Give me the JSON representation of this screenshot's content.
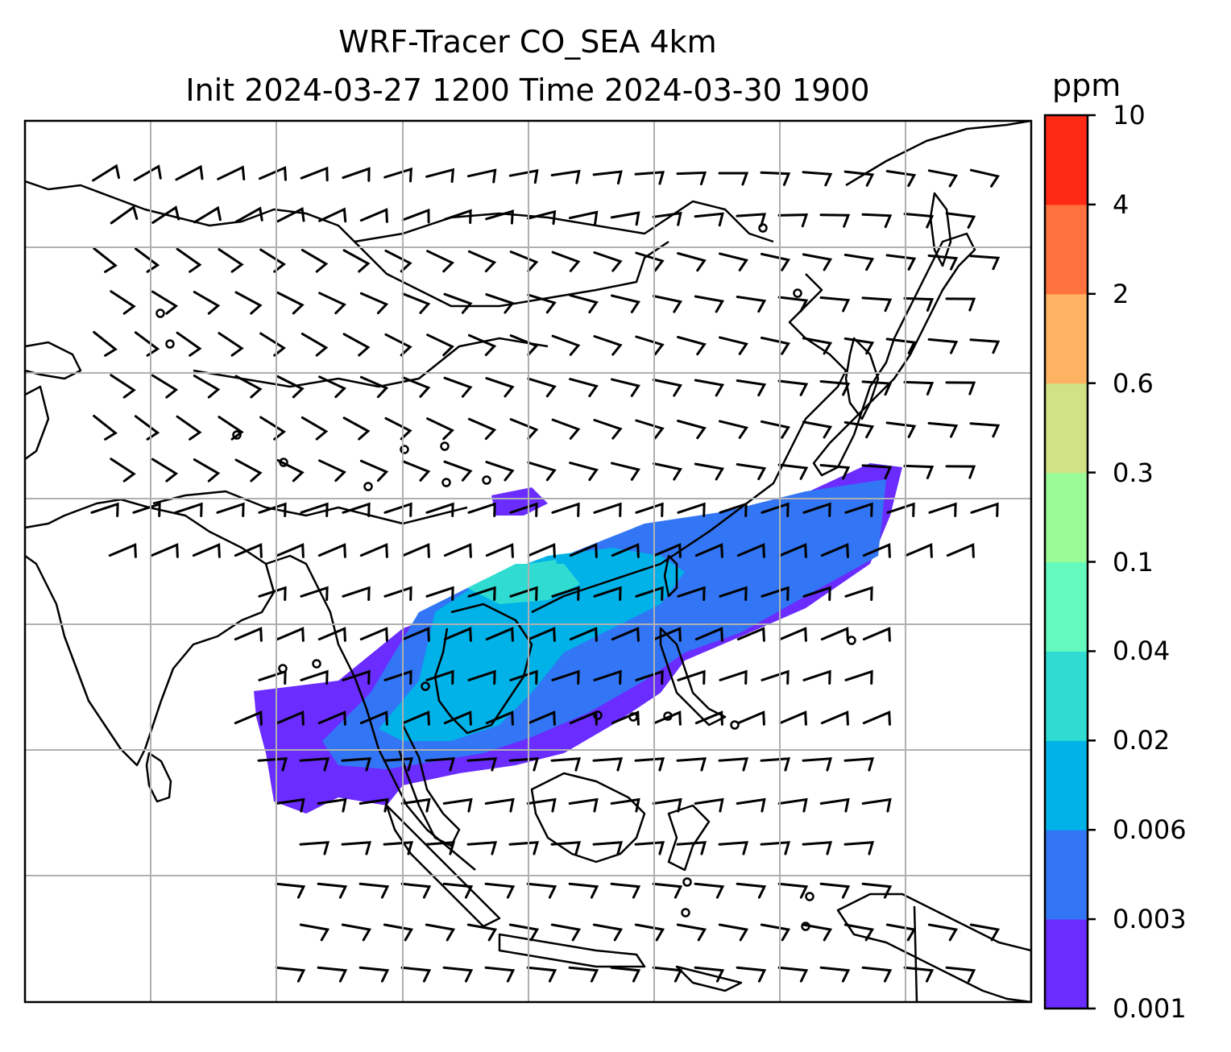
{
  "title": {
    "line1": "WRF-Tracer CO_SEA 4km",
    "line2": "Init 2024-03-27 1200 Time 2024-03-30 1900"
  },
  "colorbar": {
    "unit": "ppm",
    "levels": [
      "0.001",
      "0.003",
      "0.006",
      "0.02",
      "0.04",
      "0.1",
      "0.3",
      "0.6",
      "2",
      "4",
      "10"
    ],
    "colors": [
      "#6a2cff",
      "#3276f5",
      "#00b2e8",
      "#30dcd2",
      "#64fabe",
      "#9afa96",
      "#cfe286",
      "#feb262",
      "#ff723e",
      "#ff2a16"
    ]
  },
  "map": {
    "gridlines": "on",
    "gridline_color": "#b0b0b0",
    "overlay": "wind-barbs",
    "field": "CO tracer concentration"
  }
}
